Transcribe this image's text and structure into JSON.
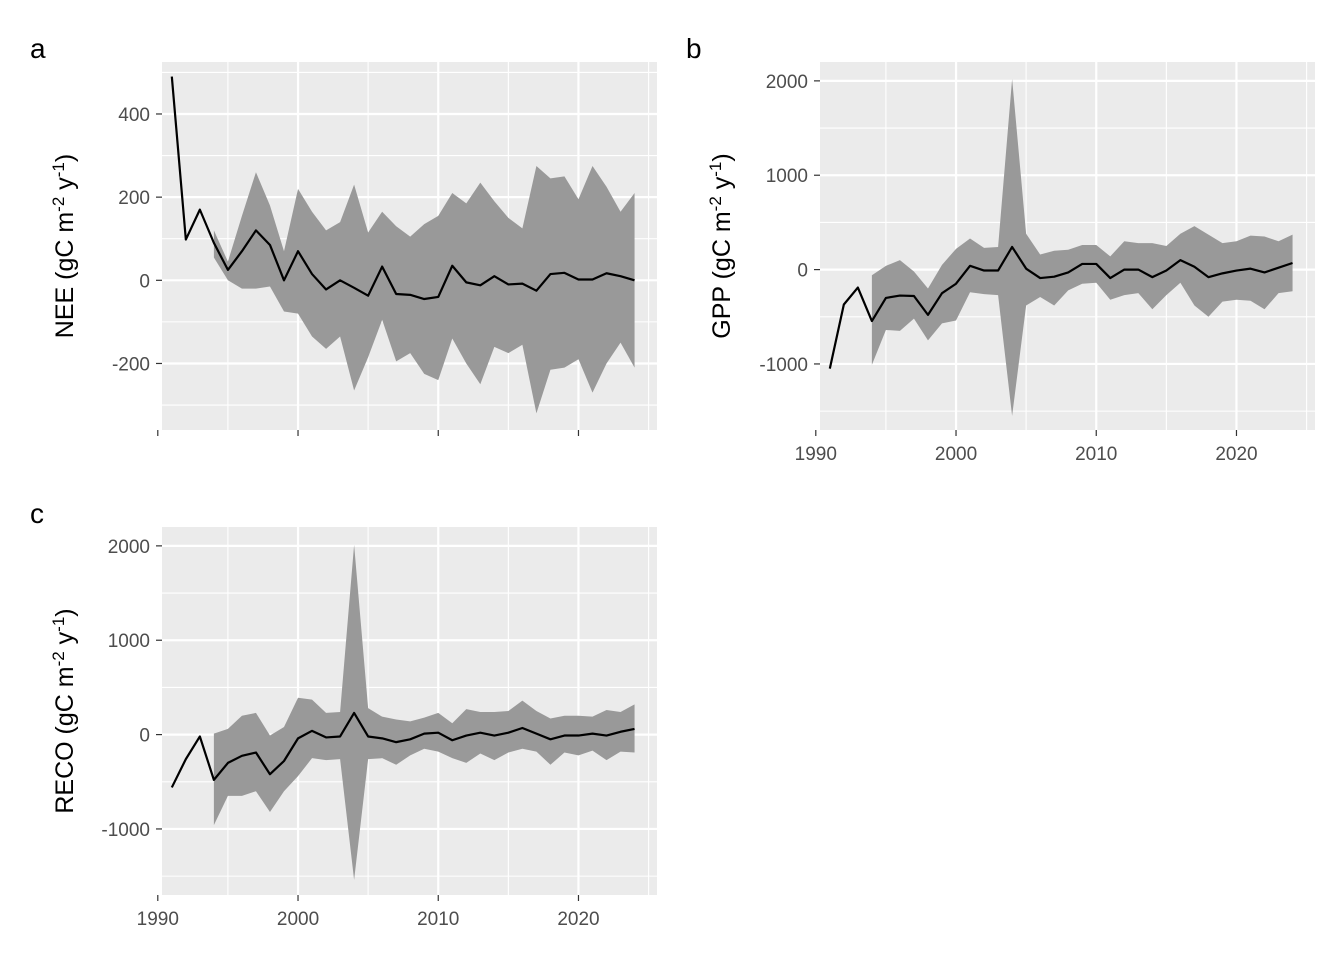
{
  "chart_data": [
    {
      "type": "line",
      "panel_label": "a",
      "ylabel": "NEE (gC m-2 y-1)",
      "ylabel_parts": {
        "main": "NEE (gC m",
        "sup1": "-2",
        "mid": " y",
        "sup2": "-1",
        "end": ")"
      },
      "xlim": [
        1990.3,
        2025.6
      ],
      "ylim": [
        -360,
        525
      ],
      "x_ticks": [
        1990,
        2000,
        2010,
        2020
      ],
      "show_x_tick_labels": false,
      "y_ticks": [
        -200,
        0,
        200,
        400
      ],
      "y_tick_labels": [
        "-200",
        "0",
        "200",
        "400"
      ],
      "grid": true,
      "line": {
        "x": [
          1991,
          1992,
          1993,
          1994,
          1995,
          1996,
          1997,
          1998,
          1999,
          2000,
          2001,
          2002,
          2003,
          2004,
          2005,
          2006,
          2007,
          2008,
          2009,
          2010,
          2011,
          2012,
          2013,
          2014,
          2015,
          2016,
          2017,
          2018,
          2019,
          2020,
          2021,
          2022,
          2023,
          2024
        ],
        "y": [
          490,
          98,
          170,
          90,
          25,
          70,
          120,
          85,
          0,
          70,
          15,
          -22,
          0,
          -18,
          -37,
          33,
          -33,
          -35,
          -45,
          -40,
          35,
          -5,
          -12,
          10,
          -10,
          -8,
          -25,
          15,
          18,
          2,
          2,
          17,
          10,
          0
        ]
      },
      "band": {
        "x": [
          1994,
          1995,
          1996,
          1997,
          1998,
          1999,
          2000,
          2001,
          2002,
          2003,
          2004,
          2005,
          2006,
          2007,
          2008,
          2009,
          2010,
          2011,
          2012,
          2013,
          2014,
          2015,
          2016,
          2017,
          2018,
          2019,
          2020,
          2021,
          2022,
          2023,
          2024
        ],
        "upper": [
          120,
          45,
          155,
          260,
          180,
          70,
          220,
          165,
          120,
          140,
          230,
          115,
          165,
          130,
          105,
          135,
          155,
          210,
          185,
          235,
          190,
          150,
          125,
          275,
          245,
          250,
          195,
          275,
          225,
          165,
          210
        ],
        "lower": [
          55,
          0,
          -20,
          -20,
          -15,
          -75,
          -80,
          -135,
          -165,
          -135,
          -265,
          -185,
          -95,
          -195,
          -175,
          -225,
          -240,
          -140,
          -200,
          -250,
          -160,
          -175,
          -155,
          -320,
          -215,
          -210,
          -190,
          -270,
          -200,
          -150,
          -210
        ]
      }
    },
    {
      "type": "line",
      "panel_label": "b",
      "ylabel": "GPP (gC m-2 y-1)",
      "ylabel_parts": {
        "main": "GPP (gC m",
        "sup1": "-2",
        "mid": " y",
        "sup2": "-1",
        "end": ")"
      },
      "xlim": [
        1990.3,
        2025.6
      ],
      "ylim": [
        -1700,
        2200
      ],
      "x_ticks": [
        1990,
        2000,
        2010,
        2020
      ],
      "x_tick_labels": [
        "1990",
        "2000",
        "2010",
        "2020"
      ],
      "show_x_tick_labels": true,
      "y_ticks": [
        -1000,
        0,
        1000,
        2000
      ],
      "y_tick_labels": [
        "-1000",
        "0",
        "1000",
        "2000"
      ],
      "grid": true,
      "line": {
        "x": [
          1991,
          1992,
          1993,
          1994,
          1995,
          1996,
          1997,
          1998,
          1999,
          2000,
          2001,
          2002,
          2003,
          2004,
          2005,
          2006,
          2007,
          2008,
          2009,
          2010,
          2011,
          2012,
          2013,
          2014,
          2015,
          2016,
          2017,
          2018,
          2019,
          2020,
          2021,
          2022,
          2023,
          2024
        ],
        "y": [
          -1050,
          -370,
          -190,
          -545,
          -300,
          -275,
          -280,
          -480,
          -250,
          -150,
          40,
          -10,
          -10,
          240,
          10,
          -90,
          -75,
          -30,
          60,
          60,
          -90,
          0,
          0,
          -80,
          -10,
          100,
          30,
          -80,
          -40,
          -10,
          10,
          -30,
          20,
          70
        ]
      },
      "band": {
        "x": [
          1994,
          1995,
          1996,
          1997,
          1998,
          1999,
          2000,
          2001,
          2002,
          2003,
          2004,
          2005,
          2006,
          2007,
          2008,
          2009,
          2010,
          2011,
          2012,
          2013,
          2014,
          2015,
          2016,
          2017,
          2018,
          2019,
          2020,
          2021,
          2022,
          2023,
          2024
        ],
        "upper": [
          -60,
          40,
          100,
          -20,
          -200,
          50,
          220,
          330,
          230,
          240,
          2020,
          380,
          160,
          200,
          210,
          260,
          260,
          140,
          300,
          280,
          280,
          250,
          380,
          460,
          370,
          280,
          300,
          360,
          350,
          300,
          370
        ],
        "lower": [
          -1010,
          -640,
          -650,
          -520,
          -750,
          -570,
          -540,
          -240,
          -260,
          -270,
          -1550,
          -380,
          -290,
          -380,
          -220,
          -150,
          -140,
          -320,
          -270,
          -250,
          -420,
          -270,
          -140,
          -380,
          -500,
          -340,
          -320,
          -330,
          -420,
          -250,
          -230
        ]
      }
    },
    {
      "type": "line",
      "panel_label": "c",
      "ylabel": "RECO (gC m-2 y-1)",
      "ylabel_parts": {
        "main": "RECO (gC m",
        "sup1": "-2",
        "mid": " y",
        "sup2": "-1",
        "end": ")"
      },
      "xlim": [
        1990.3,
        2025.6
      ],
      "ylim": [
        -1700,
        2200
      ],
      "x_ticks": [
        1990,
        2000,
        2010,
        2020
      ],
      "x_tick_labels": [
        "1990",
        "2000",
        "2010",
        "2020"
      ],
      "show_x_tick_labels": true,
      "y_ticks": [
        -1000,
        0,
        1000,
        2000
      ],
      "y_tick_labels": [
        "-1000",
        "0",
        "1000",
        "2000"
      ],
      "grid": true,
      "line": {
        "x": [
          1991,
          1992,
          1993,
          1994,
          1995,
          1996,
          1997,
          1998,
          1999,
          2000,
          2001,
          2002,
          2003,
          2004,
          2005,
          2006,
          2007,
          2008,
          2009,
          2010,
          2011,
          2012,
          2013,
          2014,
          2015,
          2016,
          2017,
          2018,
          2019,
          2020,
          2021,
          2022,
          2023,
          2024
        ],
        "y": [
          -560,
          -260,
          -20,
          -480,
          -300,
          -225,
          -190,
          -420,
          -280,
          -40,
          40,
          -30,
          -20,
          230,
          -20,
          -40,
          -80,
          -50,
          10,
          20,
          -60,
          -10,
          20,
          -10,
          20,
          70,
          10,
          -50,
          -10,
          -10,
          10,
          -10,
          30,
          60
        ]
      },
      "band": {
        "x": [
          1994,
          1995,
          1996,
          1997,
          1998,
          1999,
          2000,
          2001,
          2002,
          2003,
          2004,
          2005,
          2006,
          2007,
          2008,
          2009,
          2010,
          2011,
          2012,
          2013,
          2014,
          2015,
          2016,
          2017,
          2018,
          2019,
          2020,
          2021,
          2022,
          2023,
          2024
        ],
        "upper": [
          10,
          60,
          200,
          230,
          -10,
          80,
          390,
          370,
          230,
          240,
          2010,
          280,
          190,
          160,
          140,
          180,
          230,
          120,
          270,
          240,
          240,
          250,
          360,
          250,
          170,
          200,
          200,
          190,
          260,
          240,
          320
        ],
        "lower": [
          -960,
          -650,
          -650,
          -600,
          -820,
          -600,
          -440,
          -250,
          -270,
          -260,
          -1540,
          -260,
          -250,
          -320,
          -220,
          -150,
          -180,
          -250,
          -300,
          -200,
          -270,
          -190,
          -150,
          -180,
          -320,
          -190,
          -220,
          -170,
          -270,
          -180,
          -190
        ]
      }
    }
  ]
}
